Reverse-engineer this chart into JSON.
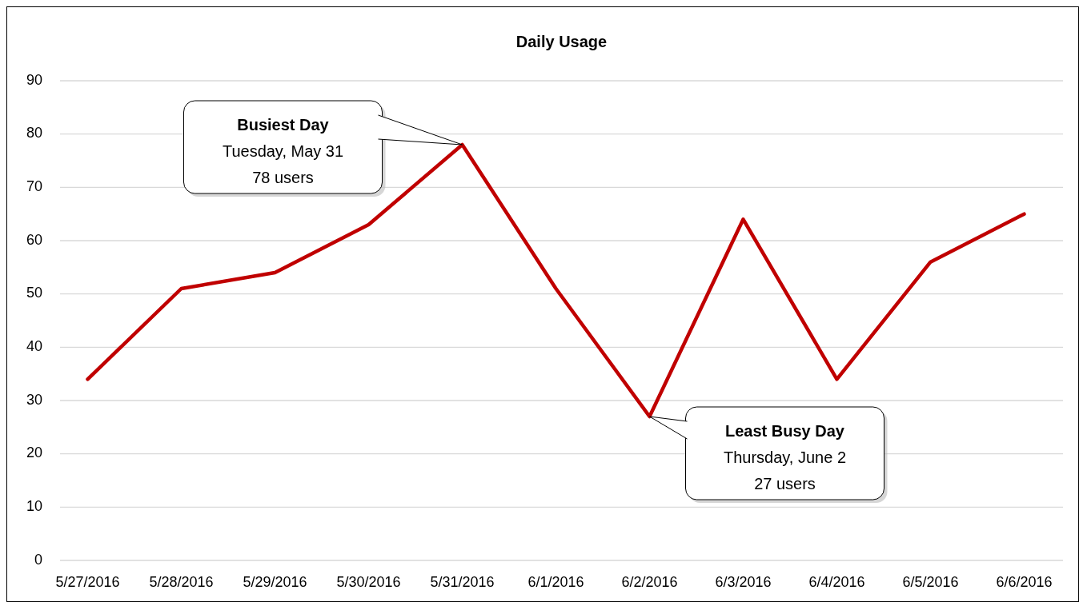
{
  "chart_data": {
    "type": "line",
    "title": "Daily Usage",
    "categories": [
      "5/27/2016",
      "5/28/2016",
      "5/29/2016",
      "5/30/2016",
      "5/31/2016",
      "6/1/2016",
      "6/2/2016",
      "6/3/2016",
      "6/4/2016",
      "6/5/2016",
      "6/6/2016"
    ],
    "series": [
      {
        "color": "#c00000",
        "values": [
          34,
          51,
          54,
          63,
          78,
          51,
          27,
          64,
          34,
          56,
          65
        ]
      }
    ],
    "ylim": [
      0,
      90
    ],
    "yticks": [
      0,
      10,
      20,
      30,
      40,
      50,
      60,
      70,
      80,
      90
    ],
    "grid": "y",
    "marker": "none",
    "line_style": "solid",
    "annotations": [
      "Busiest Day\nTuesday, May 31\n78 users",
      "Least Busy Day\nThursday, June 2\n27 users"
    ]
  }
}
